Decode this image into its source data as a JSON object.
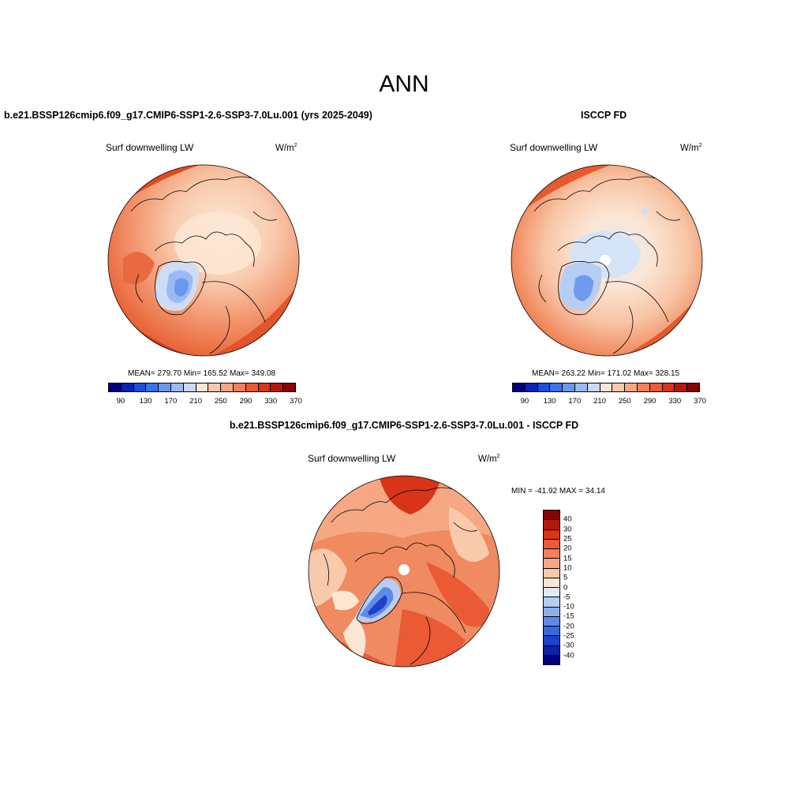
{
  "main_title": "ANN",
  "panel_left": {
    "title": "b.e21.BSSP126cmip6.f09_g17.CMIP6-SSP1-2.6-SSP3-7.0Lu.001 (yrs 2025-2049)",
    "variable": "Surf downwelling LW",
    "units": "W/m",
    "units_exp": "2",
    "stats": "MEAN= 279.70  Min= 165.52  Max= 349.08"
  },
  "panel_right": {
    "title": "ISCCP FD",
    "variable": "Surf downwelling LW",
    "units": "W/m",
    "units_exp": "2",
    "stats": "MEAN= 263.22  Min= 171.02  Max= 328.15"
  },
  "panel_diff": {
    "title": "b.e21.BSSP126cmip6.f09_g17.CMIP6-SSP1-2.6-SSP3-7.0Lu.001 - ISCCP FD",
    "variable": "Surf downwelling LW",
    "units": "W/m",
    "units_exp": "2",
    "stats": "MIN = -41.92 MAX =  34.14"
  },
  "abs_colorbar": {
    "colors": [
      "#00007a",
      "#0a24b4",
      "#1d4fd8",
      "#3a73e6",
      "#6a98ee",
      "#9cbaf2",
      "#c9daf6",
      "#fbe6d4",
      "#f9c9ac",
      "#f6a784",
      "#f1815d",
      "#e95a35",
      "#d93417",
      "#b5180b",
      "#850404"
    ],
    "tick_labels": [
      "90",
      "130",
      "170",
      "210",
      "250",
      "290",
      "330",
      "370"
    ]
  },
  "diff_colorbar": {
    "colors": [
      "#850404",
      "#b5180b",
      "#d93417",
      "#e95a35",
      "#f1815d",
      "#f6a784",
      "#f9c9ac",
      "#fbe6d4",
      "#ddeafa",
      "#b6cdf4",
      "#8eaeee",
      "#5f8be7",
      "#3a67dd",
      "#1d42c7",
      "#0a22a8",
      "#00007a"
    ],
    "tick_labels": [
      "40",
      "30",
      "25",
      "20",
      "15",
      "10",
      "5",
      "0",
      "-5",
      "-10",
      "-15",
      "-20",
      "-25",
      "-30",
      "-40"
    ]
  }
}
